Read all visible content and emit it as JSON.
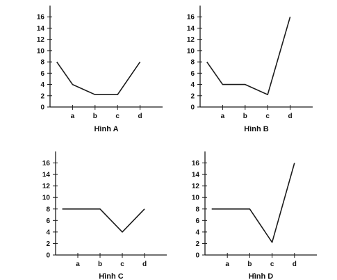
{
  "chart_data": [
    {
      "type": "line",
      "title": "Hình A",
      "categories": [
        "a",
        "b",
        "c",
        "d"
      ],
      "x": [
        0.3,
        1,
        2,
        3,
        4
      ],
      "values": [
        8,
        4,
        2.2,
        2.2,
        8
      ],
      "yticks": [
        0,
        2,
        4,
        6,
        8,
        10,
        12,
        14,
        16
      ],
      "ylim": [
        0,
        18
      ],
      "xlim": [
        0,
        5
      ],
      "xlabel": "",
      "ylabel": "",
      "grid": false
    },
    {
      "type": "line",
      "title": "Hình B",
      "categories": [
        "a",
        "b",
        "c",
        "d"
      ],
      "x": [
        0.3,
        1,
        2,
        3,
        4
      ],
      "values": [
        8,
        4,
        4,
        2.2,
        16
      ],
      "yticks": [
        0,
        2,
        4,
        6,
        8,
        10,
        12,
        14,
        16
      ],
      "ylim": [
        0,
        18
      ],
      "xlim": [
        0,
        5
      ],
      "xlabel": "",
      "ylabel": "",
      "grid": false
    },
    {
      "type": "line",
      "title": "Hình C",
      "categories": [
        "a",
        "b",
        "c",
        "d"
      ],
      "x": [
        0.3,
        1,
        2,
        3,
        4
      ],
      "values": [
        8,
        8,
        8,
        4,
        8
      ],
      "yticks": [
        0,
        2,
        4,
        6,
        8,
        10,
        12,
        14,
        16
      ],
      "ylim": [
        0,
        18
      ],
      "xlim": [
        0,
        5
      ],
      "xlabel": "",
      "ylabel": "",
      "grid": false
    },
    {
      "type": "line",
      "title": "Hình D",
      "categories": [
        "a",
        "b",
        "c",
        "d"
      ],
      "x": [
        0.3,
        1,
        2,
        3,
        4
      ],
      "values": [
        8,
        8,
        8,
        2.2,
        16
      ],
      "yticks": [
        0,
        2,
        4,
        6,
        8,
        10,
        12,
        14,
        16
      ],
      "ylim": [
        0,
        18
      ],
      "xlim": [
        0,
        5
      ],
      "xlabel": "",
      "ylabel": "",
      "grid": false
    }
  ],
  "colors": {
    "line": "#1a1a1a",
    "axis": "#1a1a1a",
    "text": "#111111"
  }
}
